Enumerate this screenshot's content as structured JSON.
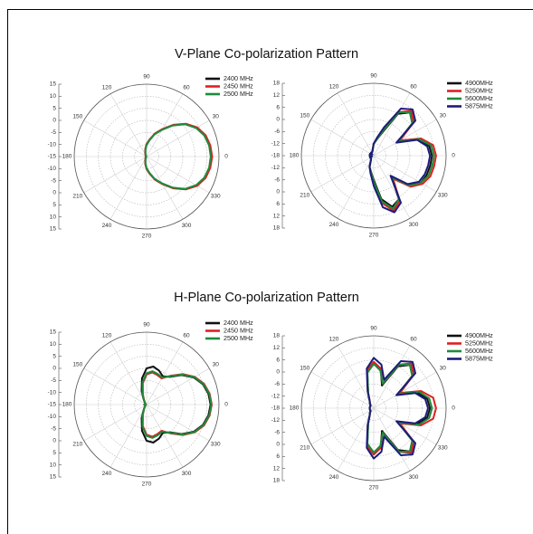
{
  "sections": [
    {
      "title": "V-Plane Co-polarization Pattern"
    },
    {
      "title": "H-Plane Co-polarization Pattern"
    }
  ],
  "colors": {
    "black": "#111111",
    "red": "#e02020",
    "green": "#1e8a3c",
    "navy": "#1c1c7a",
    "grid": "#b5b5b5",
    "spoke": "#cfcfcf"
  },
  "chart_data": [
    {
      "type": "polar-line",
      "angle_ticks": [
        "0",
        "30",
        "60",
        "90",
        "120",
        "150",
        "180",
        "210",
        "240",
        "270",
        "300",
        "330"
      ],
      "r_ticks": [
        "15",
        "10",
        "5",
        "0",
        "-5",
        "-10",
        "-15",
        "-10",
        "-5",
        "0",
        "5",
        "10",
        "15"
      ],
      "rlim": [
        -15,
        15
      ],
      "legend_position": "top-right",
      "series": [
        {
          "name": "2400 MHz",
          "color": "black",
          "r": [
            12,
            11.6,
            10.8,
            9,
            6,
            2,
            -2,
            -5,
            -8,
            -10,
            -12,
            -13.5,
            -14.2,
            -14.5,
            -14.6,
            -14.6,
            -14.7,
            -14.8,
            -14.6,
            -14.8,
            -14.7,
            -14.6,
            -14.6,
            -14.5,
            -14.2,
            -13.5,
            -12,
            -10,
            -8,
            -5,
            -2,
            2,
            6,
            9,
            10.8,
            11.6
          ]
        },
        {
          "name": "2450 MHz",
          "color": "red",
          "r": [
            12.2,
            11.8,
            11,
            9.2,
            6.2,
            2.2,
            -1.8,
            -4.8,
            -7.8,
            -9.8,
            -11.8,
            -13.3,
            -14,
            -14.4,
            -14.5,
            -14.5,
            -14.6,
            -14.7,
            -14.5,
            -14.7,
            -14.6,
            -14.5,
            -14.5,
            -14.4,
            -14,
            -13.3,
            -11.8,
            -9.8,
            -7.8,
            -4.8,
            -1.8,
            2.2,
            6.2,
            9.2,
            11,
            11.8
          ]
        },
        {
          "name": "2500 MHz",
          "color": "green",
          "r": [
            11.6,
            11.3,
            10.5,
            8.7,
            5.8,
            1.8,
            -2.2,
            -5.2,
            -8.2,
            -10.2,
            -12.2,
            -13.6,
            -14.3,
            -14.6,
            -14.7,
            -14.7,
            -14.8,
            -14.9,
            -14.7,
            -14.9,
            -14.8,
            -14.7,
            -14.7,
            -14.6,
            -14.3,
            -13.6,
            -12.2,
            -10.2,
            -8.2,
            -5.2,
            -2.2,
            1.8,
            5.8,
            8.7,
            10.5,
            11.3
          ]
        }
      ]
    },
    {
      "type": "polar-line",
      "angle_ticks": [
        "0",
        "30",
        "60",
        "90",
        "120",
        "150",
        "180",
        "210",
        "240",
        "270",
        "300",
        "330"
      ],
      "r_ticks": [
        "18",
        "12",
        "6",
        "0",
        "-6",
        "-12",
        "-18",
        "-12",
        "-6",
        "0",
        "6",
        "12",
        "18"
      ],
      "rlim": [
        -18,
        18
      ],
      "legend_position": "top-right",
      "series": [
        {
          "name": "4900MHz",
          "color": "black",
          "r": [
            11,
            10,
            6,
            -4,
            7,
            10,
            6,
            -6,
            -10,
            -12,
            -15,
            -16,
            -16,
            -16,
            -17,
            -16,
            -16,
            -16,
            -16,
            -16,
            -17,
            -16,
            -16,
            -16,
            -15,
            -12,
            -10,
            -6,
            4,
            9,
            7,
            -4,
            5,
            9,
            10,
            10.5
          ]
        },
        {
          "name": "5250MHz",
          "color": "red",
          "r": [
            13,
            12,
            7,
            -3,
            8,
            11,
            7,
            -5,
            -10,
            -12,
            -15,
            -16,
            -16,
            -16,
            -17,
            -16,
            -16,
            -16,
            -16,
            -16,
            -17,
            -16,
            -16,
            -16,
            -15,
            -12,
            -10,
            -5,
            6,
            11,
            8,
            -3,
            6,
            10,
            12,
            12.5
          ]
        },
        {
          "name": "5600MHz",
          "color": "green",
          "r": [
            12,
            11,
            6,
            -4,
            7,
            10,
            7,
            -5,
            -10,
            -12,
            -15,
            -16,
            -16,
            -16,
            -17,
            -16,
            -16,
            -16,
            -16,
            -16,
            -17,
            -16,
            -16,
            -16,
            -15,
            -12,
            -10,
            -5,
            5,
            10,
            7,
            -4,
            5,
            9,
            11,
            11.5
          ]
        },
        {
          "name": "5875MHz",
          "color": "navy",
          "r": [
            10,
            9,
            5,
            -5,
            9,
            12,
            9,
            -3,
            -9,
            -12,
            -15,
            -16,
            -16,
            -16,
            -17,
            -16,
            -16,
            -16,
            -16,
            -16,
            -17,
            -16,
            -16,
            -16,
            -15,
            -12,
            -9,
            -3,
            8,
            12,
            9,
            -5,
            4,
            8,
            9,
            9.5
          ]
        }
      ]
    },
    {
      "type": "polar-line",
      "angle_ticks": [
        "0",
        "30",
        "60",
        "90",
        "120",
        "150",
        "180",
        "210",
        "240",
        "270",
        "300",
        "330"
      ],
      "r_ticks": [
        "15",
        "10",
        "5",
        "0",
        "-5",
        "-10",
        "-15",
        "-10",
        "-5",
        "0",
        "5",
        "10",
        "15"
      ],
      "rlim": [
        -15,
        15
      ],
      "legend_position": "top-right",
      "series": [
        {
          "name": "2400 MHz",
          "color": "black",
          "r": [
            11.5,
            11,
            9.8,
            7.5,
            4,
            0,
            -1.5,
            0,
            1,
            0,
            -4,
            -9,
            -12.5,
            -13.8,
            -14.2,
            -14.4,
            -14.5,
            -14.6,
            -14,
            -14.6,
            -14.5,
            -14.4,
            -14.2,
            -13.8,
            -12.5,
            -9,
            -4,
            0,
            1,
            0,
            -1.5,
            0,
            4,
            7.5,
            9.8,
            11
          ]
        },
        {
          "name": "2450 MHz",
          "color": "red",
          "r": [
            12,
            11.5,
            10.3,
            8,
            4.6,
            0.6,
            -2.5,
            -2,
            -1.5,
            -2.5,
            -6,
            -10.5,
            -13,
            -14,
            -14.3,
            -14.5,
            -14.6,
            -14.7,
            -14.2,
            -14.7,
            -14.6,
            -14.5,
            -14.3,
            -14,
            -13,
            -10.5,
            -6,
            -2.5,
            -1.5,
            -2,
            -2.5,
            0.6,
            4.6,
            8,
            10.3,
            11.5
          ]
        },
        {
          "name": "2500 MHz",
          "color": "green",
          "r": [
            11.8,
            11.3,
            10,
            7.8,
            4.3,
            0.3,
            -2,
            -1.5,
            -1,
            -2,
            -5.5,
            -10,
            -12.8,
            -13.9,
            -14.2,
            -14.5,
            -14.6,
            -14.7,
            -14.1,
            -14.7,
            -14.6,
            -14.5,
            -14.2,
            -13.9,
            -12.8,
            -10,
            -5.5,
            -2,
            -1,
            -1.5,
            -2,
            0.3,
            4.3,
            7.8,
            10,
            11.3
          ]
        }
      ]
    },
    {
      "type": "polar-line",
      "angle_ticks": [
        "0",
        "30",
        "60",
        "90",
        "120",
        "150",
        "180",
        "210",
        "240",
        "270",
        "300",
        "330"
      ],
      "r_ticks": [
        "18",
        "12",
        "6",
        "0",
        "-6",
        "-12",
        "-18",
        "-12",
        "-6",
        "0",
        "6",
        "12",
        "18"
      ],
      "rlim": [
        -18,
        18
      ],
      "legend_position": "top-right",
      "series": [
        {
          "name": "4900MHz",
          "color": "black",
          "r": [
            10,
            9,
            5,
            -4,
            7,
            10,
            6,
            -6,
            2,
            5,
            1,
            -10,
            -14,
            -15,
            -16,
            -16,
            -16,
            -16,
            -16,
            -16,
            -16,
            -16,
            -16,
            -15,
            -14,
            -10,
            1,
            5,
            2,
            -6,
            6,
            10,
            7,
            -4,
            5,
            9
          ]
        },
        {
          "name": "5250MHz",
          "color": "red",
          "r": [
            13,
            12,
            7,
            -3,
            8,
            11,
            7,
            -5,
            2,
            5,
            1,
            -10,
            -14,
            -15,
            -16,
            -16,
            -16,
            -16,
            -16,
            -16,
            -16,
            -16,
            -16,
            -15,
            -14,
            -10,
            1,
            5,
            2,
            -5,
            7,
            11,
            8,
            -3,
            7,
            12
          ]
        },
        {
          "name": "5600MHz",
          "color": "green",
          "r": [
            11,
            10,
            6,
            -4,
            7,
            10,
            7,
            -5,
            1,
            4,
            0,
            -10,
            -14,
            -15,
            -16,
            -16,
            -16,
            -16,
            -16,
            -16,
            -16,
            -16,
            -16,
            -15,
            -14,
            -10,
            0,
            4,
            1,
            -5,
            7,
            10,
            7,
            -4,
            6,
            10
          ]
        },
        {
          "name": "5875MHz",
          "color": "navy",
          "r": [
            9,
            8,
            4,
            -5,
            9,
            12,
            9,
            -3,
            4,
            7,
            2,
            -9,
            -14,
            -15,
            -16,
            -16,
            -16,
            -16,
            -16,
            -16,
            -16,
            -16,
            -16,
            -15,
            -14,
            -9,
            2,
            7,
            4,
            -3,
            9,
            12,
            9,
            -5,
            4,
            8
          ]
        }
      ]
    }
  ]
}
